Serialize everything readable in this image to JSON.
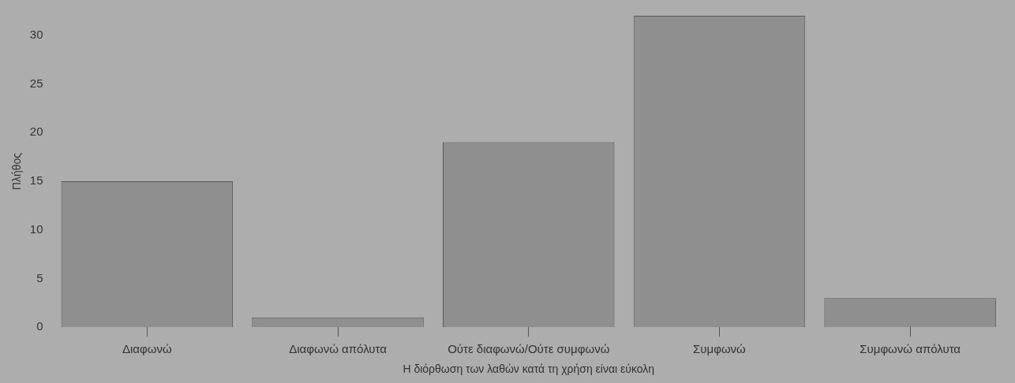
{
  "chart_data": {
    "type": "bar",
    "xlabel": "Η διόρθωση των λαθών κατά τη χρήση είναι εύκολη",
    "ylabel": "Πλήθος",
    "categories": [
      "Διαφωνώ",
      "Διαφωνώ απόλυτα",
      "Ούτε διαφωνώ/Ούτε συμφωνώ",
      "Συμφωνώ",
      "Συμφωνώ απόλυτα"
    ],
    "values": [
      15,
      1,
      19,
      32,
      3
    ],
    "color": "#8f8f8f",
    "ylim": [
      0,
      32
    ],
    "yticks": [
      0,
      5,
      10,
      15,
      20,
      25,
      30
    ],
    "grid": false,
    "legend": false
  }
}
